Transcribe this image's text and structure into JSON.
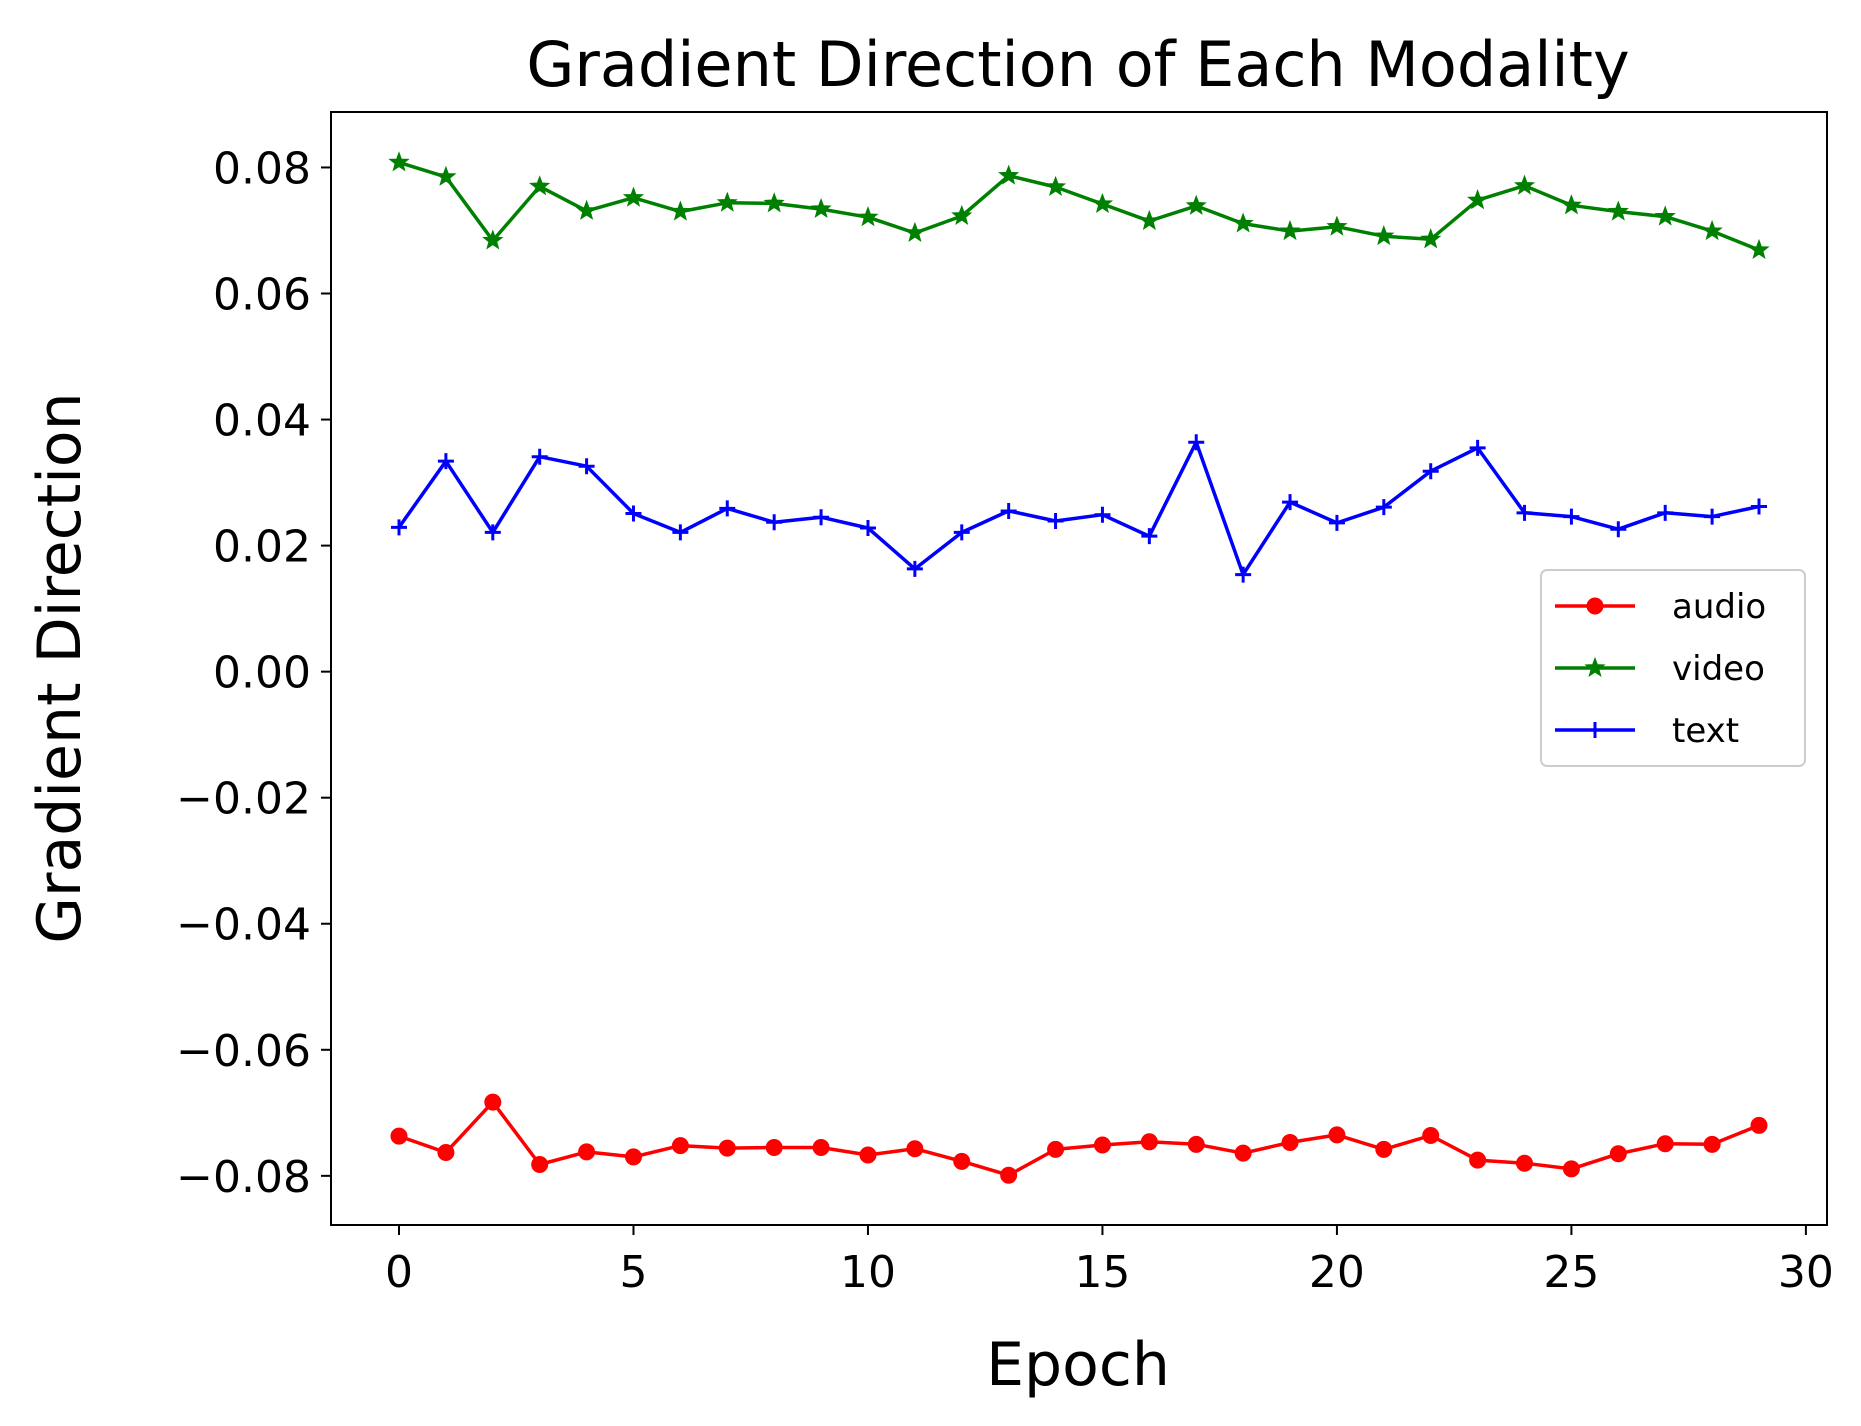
{
  "chart_data": {
    "type": "line",
    "title": "Gradient Direction of Each Modality",
    "xlabel": "Epoch",
    "ylabel": "Gradient Direction",
    "xlim": [
      -1.45,
      30.45
    ],
    "ylim": [
      -0.0878,
      0.0888
    ],
    "xticks": [
      0,
      5,
      10,
      15,
      20,
      25,
      30
    ],
    "xtick_labels": [
      "0",
      "5",
      "10",
      "15",
      "20",
      "25",
      "30"
    ],
    "yticks": [
      -0.08,
      -0.06,
      -0.04,
      -0.02,
      0.0,
      0.02,
      0.04,
      0.06,
      0.08
    ],
    "ytick_labels": [
      "−0.08",
      "−0.06",
      "−0.04",
      "−0.02",
      "0.00",
      "0.02",
      "0.04",
      "0.06",
      "0.08"
    ],
    "grid": false,
    "legend_position": "center-right",
    "x": [
      0,
      1,
      2,
      3,
      4,
      5,
      6,
      7,
      8,
      9,
      10,
      11,
      12,
      13,
      14,
      15,
      16,
      17,
      18,
      19,
      20,
      21,
      22,
      23,
      24,
      25,
      26,
      27,
      28,
      29
    ],
    "series": [
      {
        "name": "audio",
        "color": "#ff0000",
        "marker": "circle",
        "values": [
          -0.0737,
          -0.0763,
          -0.0683,
          -0.0782,
          -0.0762,
          -0.077,
          -0.0752,
          -0.0756,
          -0.0755,
          -0.0755,
          -0.0767,
          -0.0757,
          -0.0777,
          -0.0799,
          -0.0758,
          -0.0751,
          -0.0746,
          -0.075,
          -0.0764,
          -0.0747,
          -0.0735,
          -0.0758,
          -0.0736,
          -0.0775,
          -0.078,
          -0.0789,
          -0.0765,
          -0.0749,
          -0.075,
          -0.072
        ]
      },
      {
        "name": "video",
        "color": "#008000",
        "marker": "star",
        "values": [
          0.0808,
          0.0785,
          0.0684,
          0.077,
          0.0731,
          0.0752,
          0.073,
          0.0744,
          0.0743,
          0.0734,
          0.0721,
          0.0696,
          0.0723,
          0.0787,
          0.0769,
          0.0742,
          0.0715,
          0.0739,
          0.0711,
          0.0699,
          0.0706,
          0.0691,
          0.0686,
          0.0748,
          0.0771,
          0.074,
          0.073,
          0.0722,
          0.0699,
          0.0669
        ]
      },
      {
        "name": "text",
        "color": "#0000ff",
        "marker": "plus",
        "values": [
          0.0229,
          0.0334,
          0.0221,
          0.0341,
          0.0326,
          0.0251,
          0.0221,
          0.0259,
          0.0237,
          0.0245,
          0.0228,
          0.0163,
          0.0221,
          0.0255,
          0.0239,
          0.0249,
          0.0215,
          0.0364,
          0.0154,
          0.0269,
          0.0236,
          0.0261,
          0.0318,
          0.0355,
          0.0252,
          0.0246,
          0.0226,
          0.0252,
          0.0246,
          0.0262
        ]
      }
    ]
  }
}
